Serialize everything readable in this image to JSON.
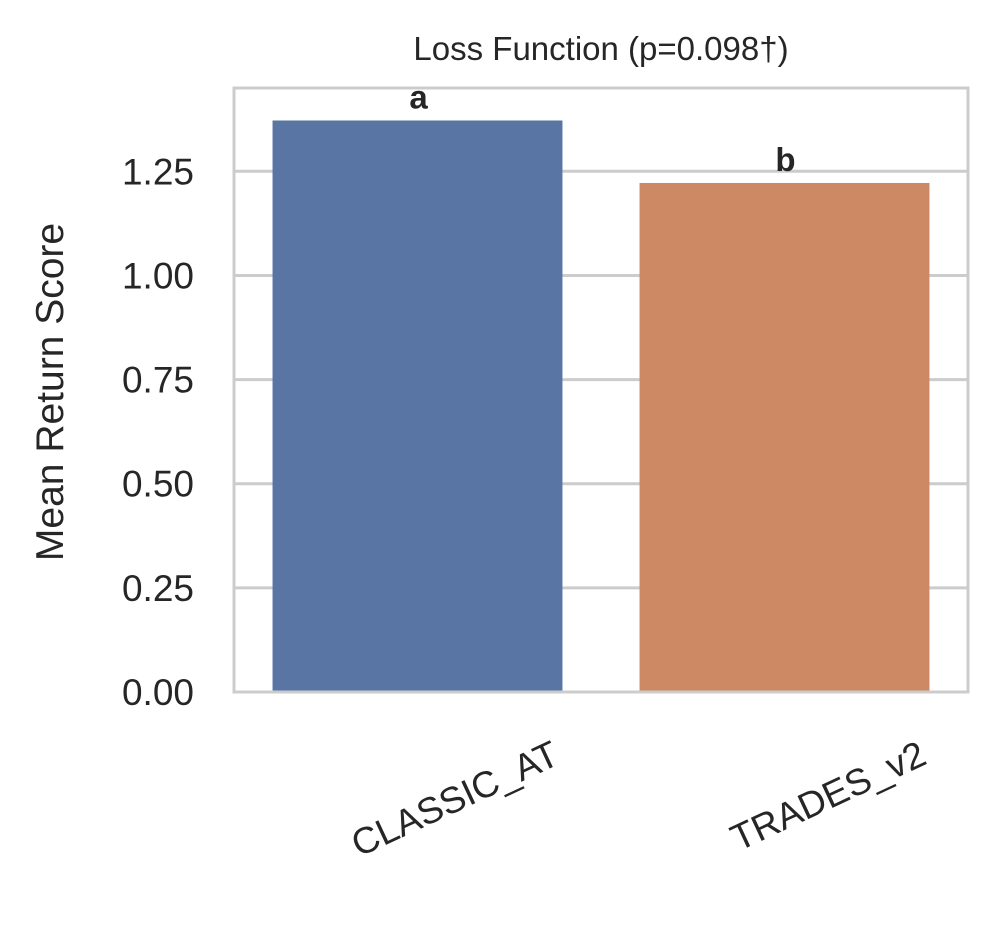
{
  "chart_data": {
    "type": "bar",
    "title": "Loss Function  (p=0.098†)",
    "xlabel": "",
    "ylabel": "Mean Return Score",
    "categories": [
      "CLASSIC_AT",
      "TRADES_v2"
    ],
    "values": [
      1.372,
      1.222
    ],
    "bar_labels": [
      "a",
      "b"
    ],
    "colors": [
      "#5975a4",
      "#cc8963"
    ],
    "ylim": [
      0,
      1.45
    ],
    "yticks": [
      0.0,
      0.25,
      0.5,
      0.75,
      1.0,
      1.25
    ],
    "ytick_labels": [
      "0.00",
      "0.25",
      "0.50",
      "0.75",
      "1.00",
      "1.25"
    ],
    "grid": "horizontal",
    "legend": "none"
  }
}
